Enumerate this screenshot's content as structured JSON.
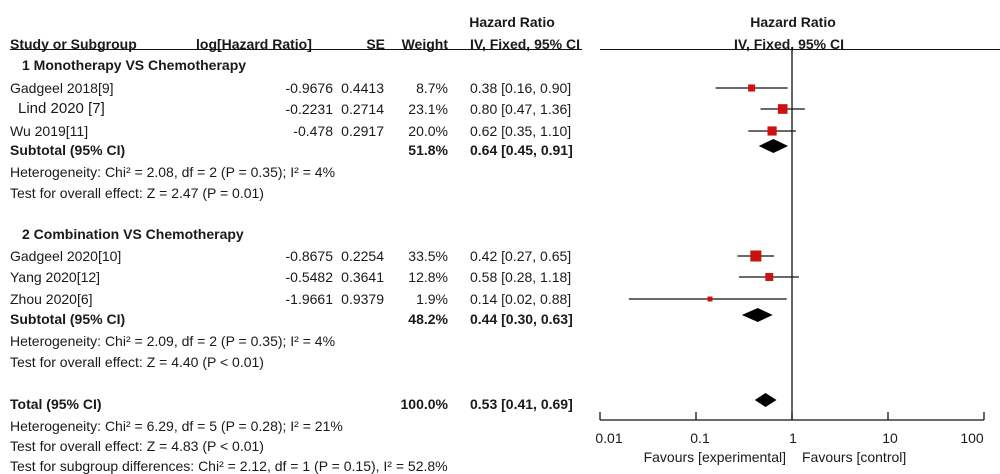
{
  "chart_data": {
    "type": "forest",
    "x_scale": "log",
    "xlim": [
      0.01,
      100
    ],
    "x_ticks": [
      "0.01",
      "0.1",
      "1",
      "10",
      "100"
    ],
    "x_tick_values": [
      0.01,
      0.1,
      1,
      10,
      100
    ],
    "favours_left": "Favours [experimental]",
    "favours_right": "Favours [control]",
    "columns": {
      "study": "Study or Subgroup",
      "loghr": "log[Hazard Ratio]",
      "se": "SE",
      "weight": "Weight",
      "hr_top": "Hazard Ratio",
      "hr_sub": "IV, Fixed, 95% CI",
      "plot_top": "Hazard Ratio",
      "plot_sub": "IV, Fixed, 95% CI"
    },
    "groups": [
      {
        "title": "1 Monotherapy VS Chemotherapy",
        "studies": [
          {
            "name": "Gadgeel 2018[9]",
            "loghr": "-0.9676",
            "se": "0.4413",
            "weight": "8.7%",
            "ci_text": "0.38 [0.16, 0.90]",
            "hr": 0.38,
            "lo": 0.16,
            "hi": 0.9,
            "w": 8.7
          },
          {
            "name": "Lind 2020 [7]",
            "loghr": "-0.2231",
            "se": "0.2714",
            "weight": "23.1%",
            "ci_text": "0.80 [0.47, 1.36]",
            "hr": 0.8,
            "lo": 0.47,
            "hi": 1.36,
            "w": 23.1
          },
          {
            "name": "Wu 2019[11]",
            "loghr": "-0.478",
            "se": "0.2917",
            "weight": "20.0%",
            "ci_text": "0.62 [0.35, 1.10]",
            "hr": 0.62,
            "lo": 0.35,
            "hi": 1.1,
            "w": 20.0
          }
        ],
        "subtotal": {
          "label": "Subtotal (95% CI)",
          "weight": "51.8%",
          "ci_text": "0.64 [0.45, 0.91]",
          "hr": 0.64,
          "lo": 0.45,
          "hi": 0.91
        },
        "heterogeneity": "Heterogeneity: Chi² = 2.08, df = 2 (P = 0.35); I² = 4%",
        "overall": "Test for overall effect: Z = 2.47 (P = 0.01)"
      },
      {
        "title": "2 Combination VS Chemotherapy",
        "studies": [
          {
            "name": "Gadgeel 2020[10]",
            "loghr": "-0.8675",
            "se": "0.2254",
            "weight": "33.5%",
            "ci_text": "0.42 [0.27, 0.65]",
            "hr": 0.42,
            "lo": 0.27,
            "hi": 0.65,
            "w": 33.5
          },
          {
            "name": "Yang 2020[12]",
            "loghr": "-0.5482",
            "se": "0.3641",
            "weight": "12.8%",
            "ci_text": "0.58 [0.28, 1.18]",
            "hr": 0.58,
            "lo": 0.28,
            "hi": 1.18,
            "w": 12.8
          },
          {
            "name": "Zhou 2020[6]",
            "loghr": "-1.9661",
            "se": "0.9379",
            "weight": "1.9%",
            "ci_text": "0.14 [0.02, 0.88]",
            "hr": 0.14,
            "lo": 0.02,
            "hi": 0.88,
            "w": 1.9
          }
        ],
        "subtotal": {
          "label": "Subtotal (95% CI)",
          "weight": "48.2%",
          "ci_text": "0.44 [0.30, 0.63]",
          "hr": 0.44,
          "lo": 0.3,
          "hi": 0.63
        },
        "heterogeneity": "Heterogeneity: Chi² = 2.09, df = 2 (P = 0.35); I² = 4%",
        "overall": "Test for overall effect: Z = 4.40 (P < 0.01)"
      }
    ],
    "total": {
      "label": "Total (95% CI)",
      "weight": "100.0%",
      "ci_text": "0.53 [0.41, 0.69]",
      "hr": 0.53,
      "lo": 0.41,
      "hi": 0.69
    },
    "total_heterogeneity": "Heterogeneity: Chi² = 6.29, df = 5 (P = 0.28); I² = 21%",
    "total_overall": "Test for overall effect: Z = 4.83 (P < 0.01)",
    "subgroup_differences": "Test for subgroup differences: Chi² = 2.12, df = 1 (P = 0.15), I² = 52.8%",
    "colors": {
      "square": "#cc1111",
      "diamond": "#000000",
      "line": "#111111"
    }
  }
}
